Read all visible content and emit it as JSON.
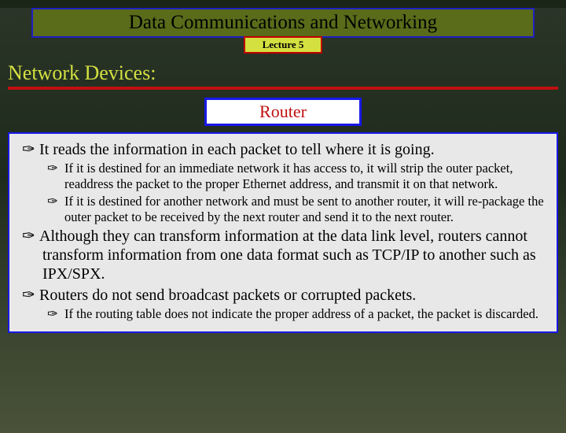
{
  "colors": {
    "title_bg": "#5a6b1a",
    "title_border": "#2020c0",
    "lecture_bg": "#d4e040",
    "lecture_border": "#c00000",
    "section_color": "#d4e040",
    "underline": "#c01010",
    "router_border": "#1818e8",
    "router_text": "#c01010",
    "panel_bg": "#e8e8e8",
    "panel_border": "#1818e8",
    "body_bg": "#1a2518"
  },
  "typography": {
    "title_fontsize": 25,
    "lecture_fontsize": 13,
    "section_fontsize": 26,
    "router_fontsize": 22,
    "lvl1_fontsize": 20,
    "lvl2_fontsize": 16.5,
    "font_family": "Times New Roman"
  },
  "bullet_glyph": "✑",
  "header": {
    "title": "Data Communications and Networking",
    "lecture": "Lecture 5"
  },
  "section": {
    "title": "Network Devices:"
  },
  "topic": {
    "label": "Router"
  },
  "body": {
    "items": [
      {
        "text": "It reads the information in each packet to tell where it is going.",
        "children": [
          {
            "text": "If it is destined for an immediate network it has access to, it will strip the outer packet, readdress the packet to the proper Ethernet address, and transmit it on that network."
          },
          {
            "text": "If it is destined for another network and must be sent to another router, it will re-package the outer packet to be received by the next router and send it to the next router."
          }
        ]
      },
      {
        "text": "Although they can transform information at the data link level, routers cannot transform information from one data format such as TCP/IP to another such as IPX/SPX.",
        "children": []
      },
      {
        "text": "Routers do not send broadcast packets or corrupted packets.",
        "children": [
          {
            "text": "If the routing table does not indicate the proper address of a packet, the packet is discarded."
          }
        ]
      }
    ]
  }
}
